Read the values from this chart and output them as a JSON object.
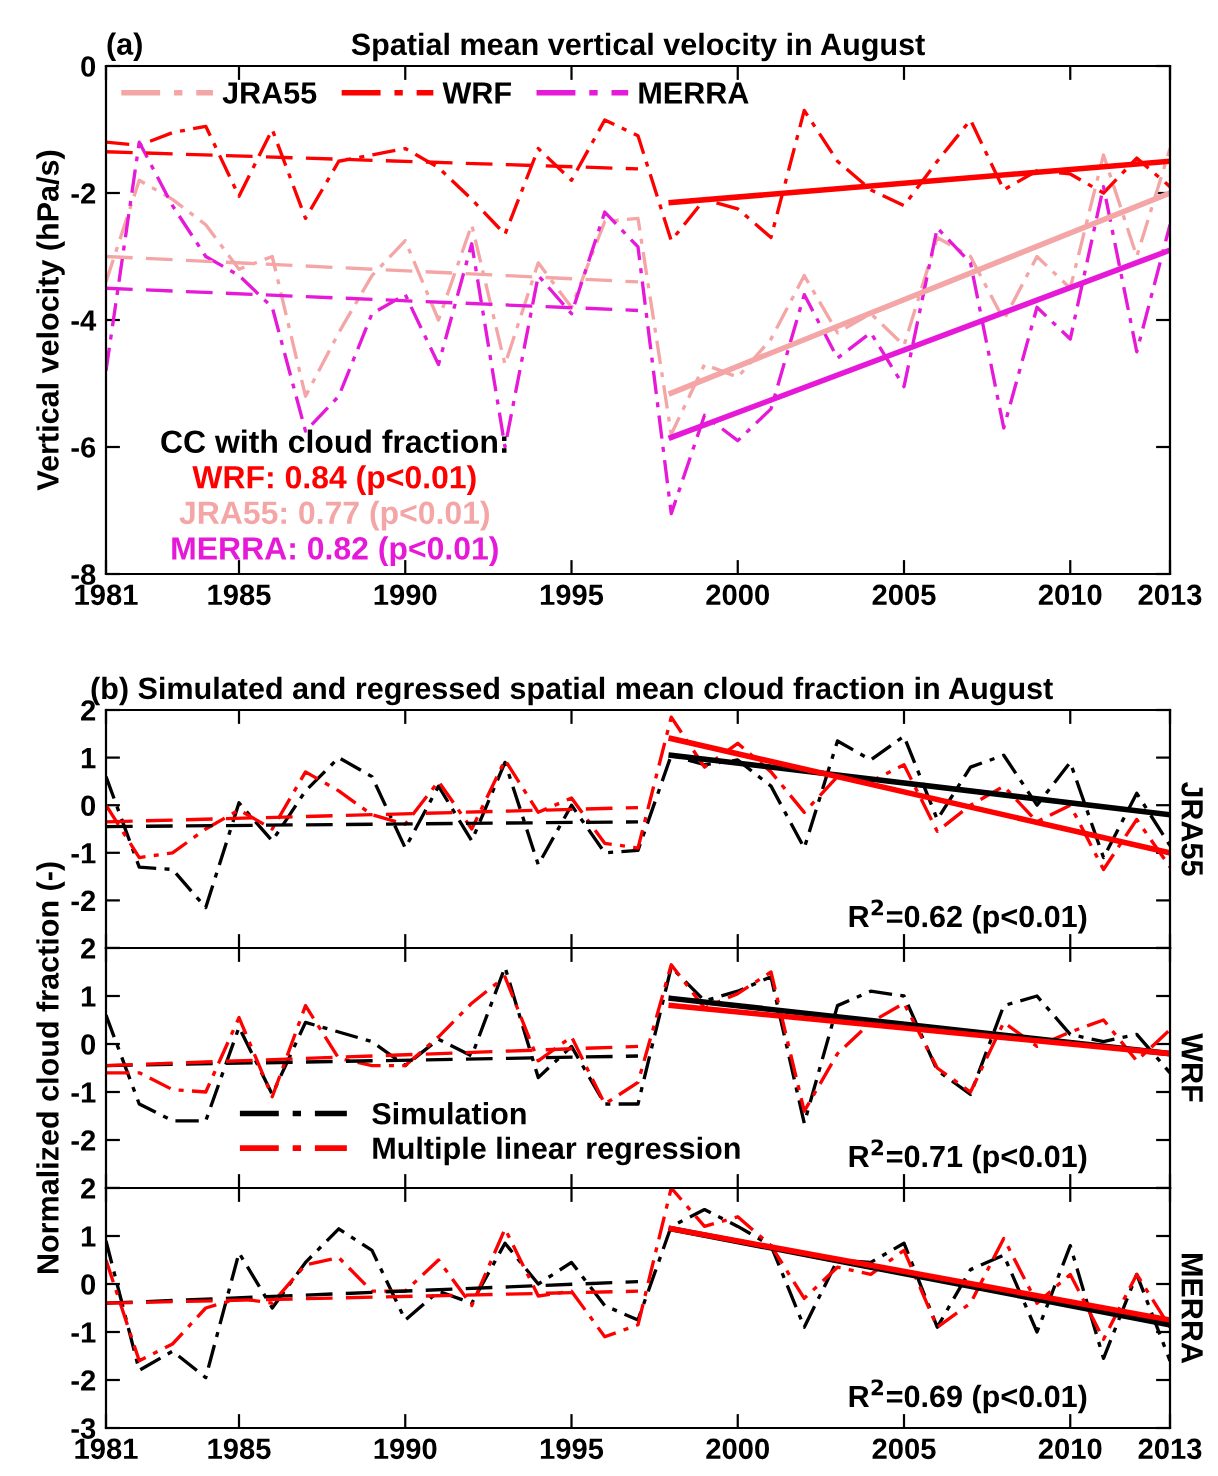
{
  "chart_data": [
    {
      "type": "line",
      "title": "Spatial mean vertical velocity in August",
      "ylabel": "Vertical velocity (hPa/s)",
      "xlim": [
        1981,
        2013
      ],
      "xticks": [
        1981,
        1985,
        1990,
        1995,
        2000,
        2005,
        2010,
        2013
      ],
      "ylim": [
        -8,
        0
      ],
      "yticks": [
        -8,
        -6,
        -4,
        -2,
        0
      ],
      "grid": false,
      "legend": "top",
      "line_style": "dashdot",
      "marker": "none",
      "x": [
        1981,
        1982,
        1983,
        1984,
        1985,
        1986,
        1987,
        1988,
        1989,
        1990,
        1991,
        1992,
        1993,
        1994,
        1995,
        1996,
        1997,
        1998,
        1999,
        2000,
        2001,
        2002,
        2003,
        2004,
        2005,
        2006,
        2007,
        2008,
        2009,
        2010,
        2011,
        2012,
        2013
      ],
      "series": [
        {
          "name": "JRA55",
          "color": "#f4a6a6",
          "values": [
            -3.4,
            -1.8,
            -2.1,
            -2.5,
            -3.2,
            -3.0,
            -5.2,
            -4.2,
            -3.3,
            -2.75,
            -4.0,
            -2.5,
            -4.7,
            -3.1,
            -3.8,
            -2.45,
            -2.4,
            -5.8,
            -4.7,
            -4.9,
            -4.3,
            -3.3,
            -4.2,
            -3.9,
            -4.4,
            -2.7,
            -3.0,
            -4.0,
            -3.0,
            -3.5,
            -1.4,
            -3.0,
            -1.3
          ]
        },
        {
          "name": "WRF",
          "color": "#ff0000",
          "values": [
            -1.2,
            -1.25,
            -1.05,
            -0.95,
            -2.05,
            -1.0,
            -2.4,
            -1.5,
            -1.4,
            -1.3,
            -1.6,
            -2.1,
            -2.65,
            -1.3,
            -1.8,
            -0.85,
            -1.1,
            -2.75,
            -2.1,
            -2.25,
            -2.7,
            -0.7,
            -1.5,
            -1.95,
            -2.2,
            -1.5,
            -0.85,
            -1.95,
            -1.65,
            -1.7,
            -2.0,
            -1.45,
            -1.9
          ]
        },
        {
          "name": "MERRA",
          "color": "#e619d9",
          "values": [
            -4.8,
            -1.2,
            -2.2,
            -3.0,
            -3.3,
            -3.8,
            -5.75,
            -5.2,
            -3.9,
            -3.6,
            -4.7,
            -2.8,
            -6.0,
            -3.3,
            -3.9,
            -2.3,
            -2.85,
            -7.05,
            -5.5,
            -5.9,
            -5.4,
            -3.6,
            -4.6,
            -4.2,
            -5.05,
            -2.55,
            -3.1,
            -5.7,
            -3.8,
            -4.3,
            -1.9,
            -4.5,
            -2.5
          ]
        },
        {
          "color": "#ff0000",
          "line_style": "dashed",
          "x": [
            1981,
            1997
          ],
          "values": [
            -1.35,
            -1.62
          ]
        },
        {
          "color": "#f4a6a6",
          "line_style": "dashed",
          "x": [
            1981,
            1997
          ],
          "values": [
            -3.0,
            -3.4
          ]
        },
        {
          "color": "#e619d9",
          "line_style": "dashed",
          "x": [
            1981,
            1997
          ],
          "values": [
            -3.5,
            -3.85
          ]
        },
        {
          "color": "#ff0000",
          "line_style": "solid",
          "x": [
            1998,
            2013
          ],
          "values": [
            -2.15,
            -1.5
          ]
        },
        {
          "color": "#f4a6a6",
          "line_style": "solid",
          "x": [
            1998,
            2013
          ],
          "values": [
            -5.15,
            -2.0
          ]
        },
        {
          "color": "#e619d9",
          "line_style": "solid",
          "x": [
            1998,
            2013
          ],
          "values": [
            -5.85,
            -2.9
          ]
        }
      ],
      "annotations": [
        "(a)",
        "CC with cloud fraction:",
        "WRF: 0.84 (p<0.01)",
        "JRA55: 0.77 (p<0.01)",
        "MERRA: 0.82 (p<0.01)"
      ]
    },
    {
      "type": "line",
      "title": "(b) Simulated and regressed spatial mean cloud fraction in August",
      "xlim": [
        1981,
        2013
      ],
      "xticks": [
        1981,
        1985,
        1990,
        1995,
        2000,
        2005,
        2010,
        2013
      ],
      "ylim": [
        -3,
        2
      ],
      "yticks": [
        {
          "value": -3,
          "label": null
        },
        -2,
        -1,
        0,
        1,
        2
      ],
      "tick_labels": "y",
      "grid": false,
      "line_style": "dashdot",
      "marker": "none",
      "x": [
        1981,
        1982,
        1983,
        1984,
        1985,
        1986,
        1987,
        1988,
        1989,
        1990,
        1991,
        1992,
        1993,
        1994,
        1995,
        1996,
        1997,
        1998,
        1999,
        2000,
        2001,
        2002,
        2003,
        2004,
        2005,
        2006,
        2007,
        2008,
        2009,
        2010,
        2011,
        2012,
        2013
      ],
      "series": [
        {
          "color": "#000000",
          "values": [
            0.6,
            -1.3,
            -1.35,
            -2.15,
            0.05,
            -0.75,
            0.3,
            1.0,
            0.6,
            -0.9,
            0.4,
            -0.75,
            0.9,
            -1.25,
            0.0,
            -1.0,
            -0.95,
            1.05,
            0.85,
            0.95,
            0.4,
            -0.9,
            1.35,
            0.95,
            1.45,
            -0.3,
            0.8,
            1.05,
            0.0,
            0.9,
            -1.1,
            0.25,
            -0.85
          ]
        },
        {
          "color": "#ff0000",
          "values": [
            0.0,
            -1.1,
            -1.0,
            -0.5,
            -0.1,
            -0.5,
            0.7,
            0.3,
            -0.2,
            -0.4,
            0.5,
            -0.5,
            0.95,
            -0.15,
            0.15,
            -0.8,
            -0.9,
            1.85,
            0.8,
            1.3,
            0.7,
            -0.15,
            0.6,
            0.5,
            0.85,
            -0.55,
            0.0,
            0.4,
            -0.35,
            0.0,
            -1.35,
            -0.3,
            -1.3
          ]
        },
        {
          "color": "#000000",
          "line_style": "dashed",
          "x": [
            1981,
            1997
          ],
          "values": [
            -0.45,
            -0.35
          ]
        },
        {
          "color": "#ff0000",
          "line_style": "dashed",
          "x": [
            1981,
            1997
          ],
          "values": [
            -0.35,
            -0.05
          ]
        },
        {
          "color": "#000000",
          "line_style": "solid",
          "x": [
            1998,
            2013
          ],
          "values": [
            1.05,
            -0.2
          ]
        },
        {
          "color": "#ff0000",
          "line_style": "solid",
          "x": [
            1998,
            2013
          ],
          "values": [
            1.4,
            -1.0
          ]
        }
      ],
      "annotations": [
        "JRA55",
        "R$^{2}$=0.62 (p<0.01)"
      ]
    },
    {
      "type": "line",
      "ylabel": "Normalized cloud fraction (-)",
      "xlim": [
        1981,
        2013
      ],
      "xticks": [
        1981,
        1985,
        1990,
        1995,
        2000,
        2005,
        2010,
        2013
      ],
      "ylim": [
        -3,
        2
      ],
      "yticks": [
        {
          "value": -3,
          "label": null
        },
        -2,
        -1,
        0,
        1,
        2
      ],
      "tick_labels": "y",
      "grid": false,
      "legend": "bottom left",
      "line_style": "dashdot",
      "marker": "none",
      "x": [
        1981,
        1982,
        1983,
        1984,
        1985,
        1986,
        1987,
        1988,
        1989,
        1990,
        1991,
        1992,
        1993,
        1994,
        1995,
        1996,
        1997,
        1998,
        1999,
        2000,
        2001,
        2002,
        2003,
        2004,
        2005,
        2006,
        2007,
        2008,
        2009,
        2010,
        2011,
        2012,
        2013
      ],
      "series": [
        {
          "name": "Simulation",
          "color": "#000000",
          "values": [
            0.6,
            -1.25,
            -1.6,
            -1.6,
            0.35,
            -1.05,
            0.45,
            0.25,
            0.05,
            -0.45,
            0.1,
            -0.25,
            1.6,
            -0.7,
            -0.05,
            -1.25,
            -1.25,
            1.6,
            0.9,
            1.1,
            1.4,
            -1.65,
            0.8,
            1.1,
            1.0,
            -0.55,
            -1.05,
            0.8,
            1.0,
            0.2,
            0.05,
            0.2,
            -0.6
          ]
        },
        {
          "name": "Multiple linear regression",
          "color": "#ff0000",
          "values": [
            -0.6,
            -0.6,
            -0.95,
            -1.0,
            0.55,
            -1.1,
            0.8,
            -0.3,
            -0.45,
            -0.45,
            0.15,
            0.85,
            1.4,
            -0.35,
            0.15,
            -1.25,
            -0.8,
            1.65,
            0.75,
            1.05,
            1.5,
            -1.4,
            -0.2,
            0.45,
            0.85,
            -0.5,
            -1.0,
            0.45,
            -0.05,
            0.25,
            0.5,
            -0.35,
            0.3
          ]
        },
        {
          "color": "#000000",
          "line_style": "dashed",
          "x": [
            1981,
            1997
          ],
          "values": [
            -0.45,
            -0.25
          ]
        },
        {
          "color": "#ff0000",
          "line_style": "dashed",
          "x": [
            1981,
            1997
          ],
          "values": [
            -0.45,
            -0.05
          ]
        },
        {
          "color": "#000000",
          "line_style": "solid",
          "x": [
            1998,
            2013
          ],
          "values": [
            0.95,
            -0.2
          ]
        },
        {
          "color": "#ff0000",
          "line_style": "solid",
          "x": [
            1998,
            2013
          ],
          "values": [
            0.8,
            -0.2
          ]
        }
      ],
      "annotations": [
        "WRF",
        "R$^{2}$=0.71 (p<0.01)"
      ]
    },
    {
      "type": "line",
      "xlim": [
        1981,
        2013
      ],
      "xticks": [
        1981,
        1985,
        1990,
        1995,
        2000,
        2005,
        2010,
        2013
      ],
      "ylim": [
        -3,
        2
      ],
      "yticks": [
        -3,
        -2,
        -1,
        0,
        1,
        2
      ],
      "grid": false,
      "line_style": "dashdot",
      "marker": "none",
      "x": [
        1981,
        1982,
        1983,
        1984,
        1985,
        1986,
        1987,
        1988,
        1989,
        1990,
        1991,
        1992,
        1993,
        1994,
        1995,
        1996,
        1997,
        1998,
        1999,
        2000,
        2001,
        2002,
        2003,
        2004,
        2005,
        2006,
        2007,
        2008,
        2009,
        2010,
        2011,
        2012,
        2013
      ],
      "series": [
        {
          "color": "#000000",
          "values": [
            0.9,
            -1.8,
            -1.4,
            -1.95,
            0.65,
            -0.5,
            0.45,
            1.15,
            0.7,
            -0.75,
            -0.15,
            -0.4,
            0.85,
            0.0,
            0.45,
            -0.45,
            -0.75,
            1.2,
            1.55,
            1.2,
            0.8,
            -0.9,
            0.5,
            0.45,
            0.85,
            -0.9,
            0.3,
            0.6,
            -1.0,
            0.8,
            -1.55,
            0.2,
            -1.6
          ]
        },
        {
          "color": "#ff0000",
          "values": [
            0.5,
            -1.6,
            -1.25,
            -0.5,
            -0.3,
            -0.4,
            0.4,
            0.55,
            -0.15,
            -0.15,
            0.5,
            -0.45,
            1.15,
            -0.25,
            -0.15,
            -1.1,
            -0.85,
            2.0,
            1.2,
            1.4,
            0.8,
            -0.3,
            0.35,
            0.2,
            0.7,
            -0.9,
            -0.4,
            0.95,
            -0.4,
            0.2,
            -1.15,
            0.2,
            -0.9
          ]
        },
        {
          "color": "#000000",
          "line_style": "dashed",
          "x": [
            1981,
            1997
          ],
          "values": [
            -0.4,
            0.05
          ]
        },
        {
          "color": "#ff0000",
          "line_style": "dashed",
          "x": [
            1981,
            1997
          ],
          "values": [
            -0.4,
            -0.15
          ]
        },
        {
          "color": "#000000",
          "line_style": "solid",
          "x": [
            1998,
            2013
          ],
          "values": [
            1.15,
            -0.85
          ]
        },
        {
          "color": "#ff0000",
          "line_style": "solid",
          "x": [
            1998,
            2013
          ],
          "values": [
            1.15,
            -0.75
          ]
        }
      ],
      "annotations": [
        "MERRA",
        "R$^{2}$=0.69 (p<0.01)"
      ]
    }
  ]
}
